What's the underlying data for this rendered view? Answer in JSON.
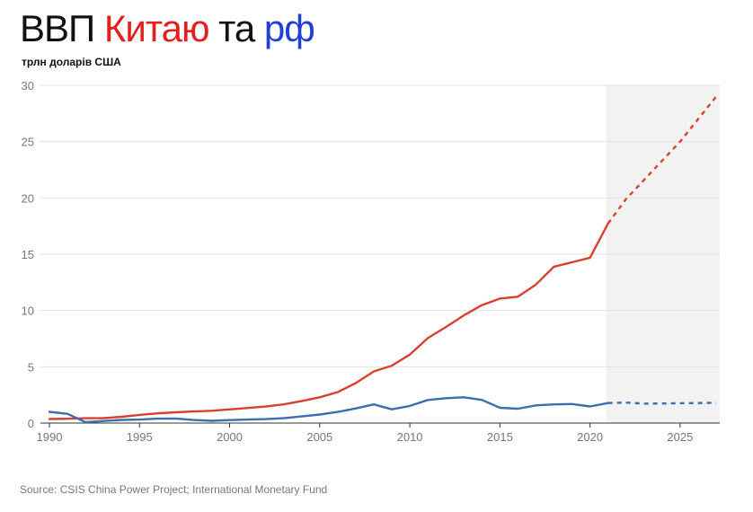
{
  "header": {
    "title_part1": "ВВП",
    "title_part2": "Китаю",
    "title_part3": "та",
    "title_part4": "рф",
    "subtitle": "трлн доларів США"
  },
  "footer": {
    "source": "Source: CSIS China Power Project; International Monetary Fund"
  },
  "colors": {
    "china": "#d9412f",
    "russia": "#3b6fb0",
    "forecast_band": "#f2f2f2",
    "grid": "#e3e3e3",
    "axis": "#333333"
  },
  "chart_data": {
    "type": "line",
    "xlim": [
      1990,
      2027
    ],
    "ylim": [
      0,
      30
    ],
    "y_ticks": [
      0,
      5,
      10,
      15,
      20,
      25,
      30
    ],
    "x_ticks": [
      1990,
      1995,
      2000,
      2005,
      2010,
      2015,
      2020,
      2025
    ],
    "forecast_start": 2021,
    "grid": true,
    "series": [
      {
        "key": "china",
        "x": [
          1990,
          1991,
          1992,
          1993,
          1994,
          1995,
          1996,
          1997,
          1998,
          1999,
          2000,
          2001,
          2002,
          2003,
          2004,
          2005,
          2006,
          2007,
          2008,
          2009,
          2010,
          2011,
          2012,
          2013,
          2014,
          2015,
          2016,
          2017,
          2018,
          2019,
          2020,
          2021,
          2022,
          2023,
          2024,
          2025,
          2026,
          2027
        ],
        "values": [
          0.36,
          0.38,
          0.43,
          0.44,
          0.56,
          0.73,
          0.86,
          0.96,
          1.03,
          1.09,
          1.21,
          1.34,
          1.47,
          1.66,
          1.96,
          2.29,
          2.75,
          3.55,
          4.59,
          5.1,
          6.09,
          7.55,
          8.53,
          9.57,
          10.48,
          11.06,
          11.23,
          12.31,
          13.89,
          14.28,
          14.69,
          17.73,
          19.9,
          21.6,
          23.3,
          25.0,
          27.0,
          29.0
        ]
      },
      {
        "key": "russia",
        "x": [
          1990,
          1991,
          1992,
          1993,
          1994,
          1995,
          1996,
          1997,
          1998,
          1999,
          2000,
          2001,
          2002,
          2003,
          2004,
          2005,
          2006,
          2007,
          2008,
          2009,
          2010,
          2011,
          2012,
          2013,
          2014,
          2015,
          2016,
          2017,
          2018,
          2019,
          2020,
          2021,
          2022,
          2023,
          2024,
          2025,
          2026,
          2027
        ],
        "values": [
          1.0,
          0.82,
          0.08,
          0.18,
          0.28,
          0.31,
          0.39,
          0.41,
          0.27,
          0.2,
          0.26,
          0.31,
          0.35,
          0.43,
          0.59,
          0.76,
          0.99,
          1.3,
          1.66,
          1.22,
          1.52,
          2.05,
          2.21,
          2.29,
          2.06,
          1.36,
          1.28,
          1.57,
          1.66,
          1.69,
          1.48,
          1.78,
          1.82,
          1.73,
          1.74,
          1.76,
          1.78,
          1.8
        ]
      }
    ]
  }
}
